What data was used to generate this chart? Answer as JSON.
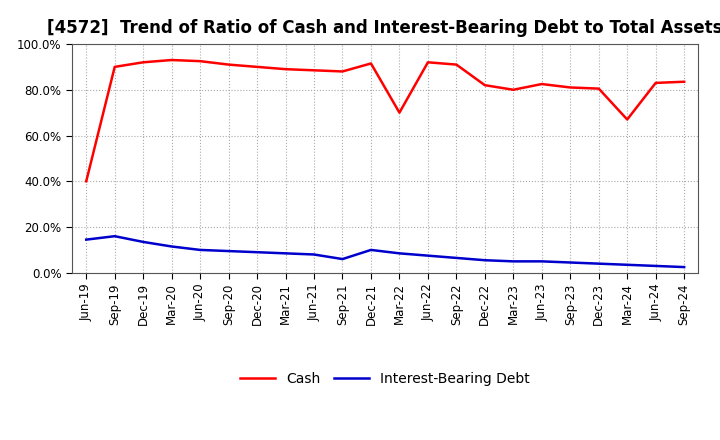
{
  "title": "[4572]  Trend of Ratio of Cash and Interest-Bearing Debt to Total Assets",
  "x_labels": [
    "Jun-19",
    "Sep-19",
    "Dec-19",
    "Mar-20",
    "Jun-20",
    "Sep-20",
    "Dec-20",
    "Mar-21",
    "Jun-21",
    "Sep-21",
    "Dec-21",
    "Mar-22",
    "Jun-22",
    "Sep-22",
    "Dec-22",
    "Mar-23",
    "Jun-23",
    "Sep-23",
    "Dec-23",
    "Mar-24",
    "Jun-24",
    "Sep-24"
  ],
  "cash": [
    40.0,
    90.0,
    92.0,
    93.0,
    92.5,
    91.0,
    90.0,
    89.0,
    88.5,
    88.0,
    91.5,
    70.0,
    92.0,
    91.0,
    82.0,
    80.0,
    82.5,
    81.0,
    80.5,
    67.0,
    83.0,
    83.5
  ],
  "debt": [
    14.5,
    16.0,
    13.5,
    11.5,
    10.0,
    9.5,
    9.0,
    8.5,
    8.0,
    6.0,
    10.0,
    8.5,
    7.5,
    6.5,
    5.5,
    5.0,
    5.0,
    4.5,
    4.0,
    3.5,
    3.0,
    2.5
  ],
  "cash_color": "#ff0000",
  "debt_color": "#0000cc",
  "ylim": [
    0,
    100
  ],
  "yticks": [
    0,
    20,
    40,
    60,
    80,
    100
  ],
  "ytick_labels": [
    "0.0%",
    "20.0%",
    "40.0%",
    "60.0%",
    "80.0%",
    "100.0%"
  ],
  "legend_cash": "Cash",
  "legend_debt": "Interest-Bearing Debt",
  "bg_color": "#ffffff",
  "grid_color": "#aaaaaa",
  "title_fontsize": 12,
  "axis_fontsize": 8.5,
  "legend_fontsize": 10
}
